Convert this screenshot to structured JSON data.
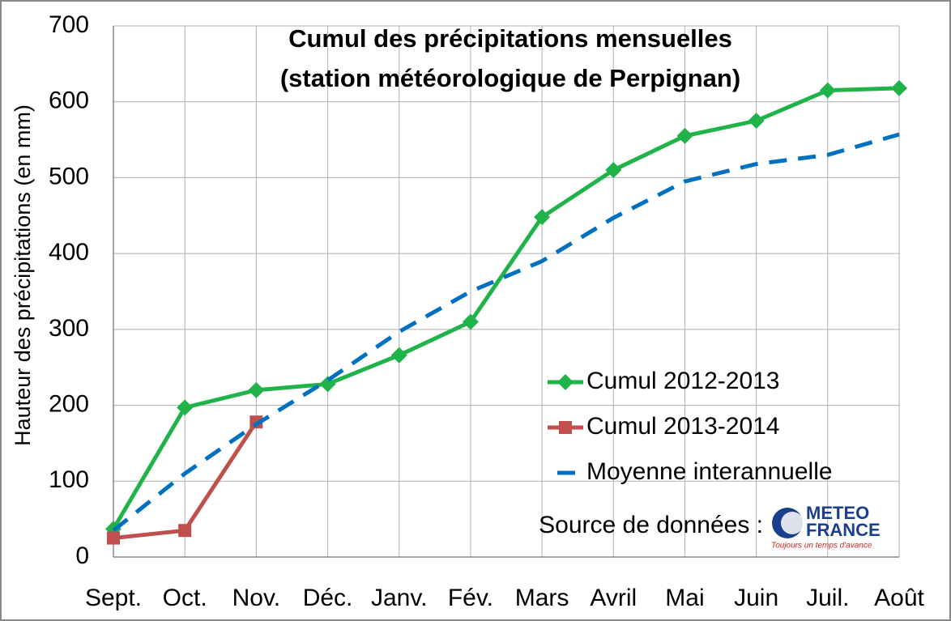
{
  "chart_data": {
    "type": "line",
    "title": [
      "Cumul des précipitations mensuelles",
      "(station météorologique de Perpignan)"
    ],
    "y_label": "Hauteur des précipitations (en mm)",
    "categories": [
      "Sept.",
      "Oct.",
      "Nov.",
      "Déc.",
      "Janv.",
      "Fév.",
      "Mars",
      "Avril",
      "Mai",
      "Juin",
      "Juil.",
      "Août"
    ],
    "series": [
      {
        "name": "Cumul 2012-2013",
        "color": "#1fb34a",
        "marker": "diamond",
        "dash": false,
        "values": [
          37,
          197,
          220,
          228,
          266,
          310,
          448,
          510,
          555,
          575,
          615,
          618
        ]
      },
      {
        "name": "Cumul 2013-2014",
        "color": "#c0504d",
        "marker": "square",
        "dash": false,
        "values": [
          25,
          35,
          178,
          null,
          null,
          null,
          null,
          null,
          null,
          null,
          null,
          null
        ]
      },
      {
        "name": "Moyenne interannuelle",
        "color": "#0070c0",
        "marker": "none",
        "dash": true,
        "values": [
          35,
          110,
          175,
          233,
          297,
          350,
          390,
          447,
          495,
          518,
          530,
          557
        ]
      }
    ],
    "ylim": [
      0,
      700
    ],
    "yticks": [
      0,
      100,
      200,
      300,
      400,
      500,
      600,
      700
    ],
    "grid": true,
    "source": "Source de données :",
    "logo": {
      "line1": "METEO",
      "line2": "FRANCE",
      "slogan": "Toujours un temps d'avance"
    }
  }
}
